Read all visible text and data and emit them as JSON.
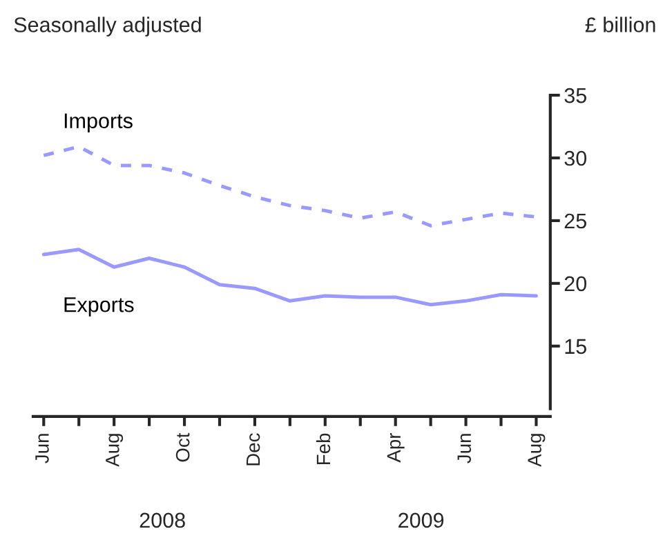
{
  "chart_data": {
    "type": "line",
    "title": "Seasonally adjusted",
    "ylabel": "£ billion",
    "categories": [
      "Jun",
      null,
      "Aug",
      null,
      "Oct",
      null,
      "Dec",
      null,
      "Feb",
      null,
      "Apr",
      null,
      "Jun",
      null,
      "Aug"
    ],
    "series": [
      {
        "name": "Imports",
        "color": "#9999ff",
        "line_style": "dashed",
        "values": [
          30.2,
          30.9,
          29.4,
          29.4,
          28.8,
          27.8,
          26.9,
          26.2,
          25.8,
          25.2,
          25.7,
          24.6,
          25.1,
          25.6,
          25.3
        ]
      },
      {
        "name": "Exports",
        "color": "#9999ff",
        "line_style": "solid",
        "values": [
          22.3,
          22.7,
          21.3,
          22.0,
          21.3,
          19.9,
          19.6,
          18.6,
          19.0,
          18.9,
          18.9,
          18.3,
          18.6,
          19.1,
          19.0
        ]
      }
    ],
    "ylim": [
      10,
      35
    ],
    "yticks": [
      15,
      20,
      25,
      30,
      35
    ],
    "grid": false,
    "legend": false,
    "annotations": [
      "2008",
      "2009"
    ]
  }
}
